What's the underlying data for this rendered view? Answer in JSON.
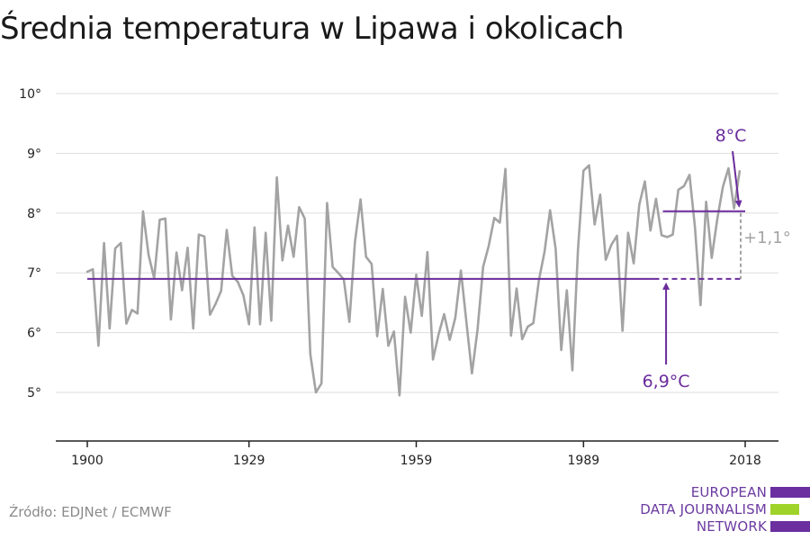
{
  "title": "Średnia temperatura w Lipawa i okolicach",
  "source": "Źródło: EDJNet / ECMWF",
  "logo": {
    "lines": [
      "EUROPEAN",
      "DATA JOURNALISM",
      "NETWORK"
    ],
    "colors": [
      "#6b2fa0",
      "#9fd32a",
      "#6b2fa0"
    ]
  },
  "colors": {
    "series": "#a3a3a3",
    "reference": "#6a2c9c",
    "grid": "#dddddd",
    "axis": "#222222",
    "diff": "#a3a3a3"
  },
  "chart_data": {
    "type": "line",
    "title": "Średnia temperatura w Lipawa i okolicach",
    "xlabel": "",
    "ylabel": "",
    "xlim": [
      1900,
      2018
    ],
    "ylim": [
      4.5,
      10
    ],
    "x_ticks": [
      "1900",
      "1929",
      "1959",
      "1989",
      "2018"
    ],
    "y_ticks": [
      "5°",
      "6°",
      "7°",
      "8°",
      "9°",
      "10°"
    ],
    "grid": true,
    "series": [
      {
        "x_start": 1900,
        "values": [
          7.02,
          7.06,
          5.78,
          7.5,
          6.07,
          7.41,
          7.5,
          6.15,
          6.38,
          6.32,
          8.03,
          7.3,
          6.91,
          7.89,
          7.91,
          6.22,
          7.34,
          6.71,
          7.42,
          6.07,
          7.64,
          7.61,
          6.3,
          6.48,
          6.7,
          7.72,
          6.95,
          6.85,
          6.62,
          6.14,
          7.76,
          6.14,
          7.67,
          6.2,
          8.6,
          7.21,
          7.79,
          7.27,
          8.1,
          7.91,
          5.64,
          5.0,
          5.15,
          8.17,
          7.1,
          7.0,
          6.89,
          6.18,
          7.52,
          8.23,
          7.27,
          7.15,
          5.94,
          6.73,
          5.78,
          6.02,
          4.95,
          6.6,
          6.0,
          6.97,
          6.28,
          7.35,
          5.55,
          5.97,
          6.31,
          5.88,
          6.25,
          7.04,
          6.17,
          5.32,
          6.05,
          7.1,
          7.45,
          7.92,
          7.84,
          8.74,
          5.95,
          6.74,
          5.89,
          6.1,
          6.16,
          6.88,
          7.35,
          8.05,
          7.4,
          5.71,
          6.71,
          5.37,
          7.39,
          8.71,
          8.8,
          7.81,
          8.31,
          7.22,
          7.47,
          7.62,
          6.03,
          7.67,
          7.16,
          8.14,
          8.53,
          7.71,
          8.24,
          7.63,
          7.6,
          7.64,
          8.39,
          8.45,
          8.64,
          7.76,
          6.46,
          8.19,
          7.25,
          7.9,
          8.44,
          8.75,
          8.08,
          8.7
        ]
      }
    ],
    "reference_lines": [
      {
        "label": "6,9°C",
        "value": 6.9,
        "from": 1900,
        "to": 2018,
        "solid_to": 2000
      },
      {
        "label": "8°C",
        "value": 8.03,
        "from": 2000,
        "to": 2018
      }
    ],
    "difference_label": "+1,1°"
  }
}
